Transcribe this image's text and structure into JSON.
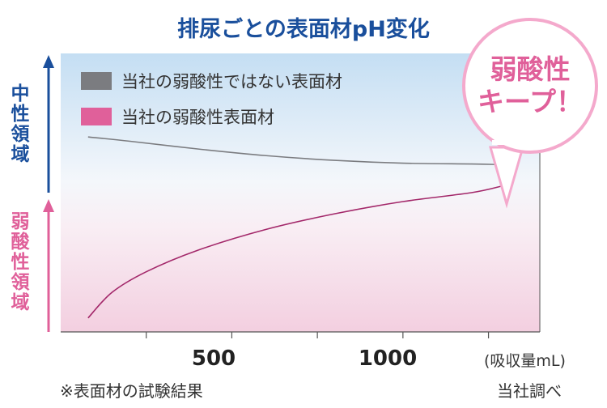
{
  "title": "排尿ごとの表面材pH変化",
  "legend": [
    {
      "label": "当社の弱酸性ではない表面材",
      "color": "#7b7c80"
    },
    {
      "label": "当社の弱酸性表面材",
      "color": "#e0609a"
    }
  ],
  "y_axis": {
    "upper_label": "中性領域",
    "lower_label": "弱酸性領域",
    "upper_color": "#1a4f9c",
    "lower_color": "#e0609a"
  },
  "x_axis": {
    "tick_labels": [
      "500",
      "1000"
    ],
    "unit_label": "(吸収量mL)"
  },
  "callout": {
    "line1": "弱酸性",
    "line2": "キープ！",
    "color": "#e0609a"
  },
  "footnote": "※表面材の試験結果",
  "source": "当社調べ",
  "chart_data": {
    "type": "line",
    "title": "排尿ごとの表面材pH変化",
    "xlabel": "(吸収量mL)",
    "ylabel": "",
    "xlim": [
      0,
      1400
    ],
    "x_ticks": [
      250,
      500,
      750,
      1000,
      1250
    ],
    "x_tick_labels": [
      "",
      "500",
      "",
      "1000",
      ""
    ],
    "y_scale_note": "upper = 中性領域, lower = 弱酸性領域 (no numeric ticks)",
    "ylim": [
      0,
      1
    ],
    "series": [
      {
        "name": "当社の弱酸性ではない表面材",
        "color": "#7b7c80",
        "x": [
          80,
          200,
          400,
          600,
          800,
          1000,
          1200,
          1275
        ],
        "y": [
          0.7,
          0.685,
          0.657,
          0.633,
          0.616,
          0.606,
          0.603,
          0.601
        ]
      },
      {
        "name": "当社の弱酸性表面材",
        "color": "#e0609a",
        "x": [
          80,
          150,
          250,
          400,
          600,
          800,
          1000,
          1200,
          1290
        ],
        "y": [
          0.05,
          0.142,
          0.216,
          0.293,
          0.368,
          0.424,
          0.468,
          0.5,
          0.524
        ]
      }
    ]
  }
}
